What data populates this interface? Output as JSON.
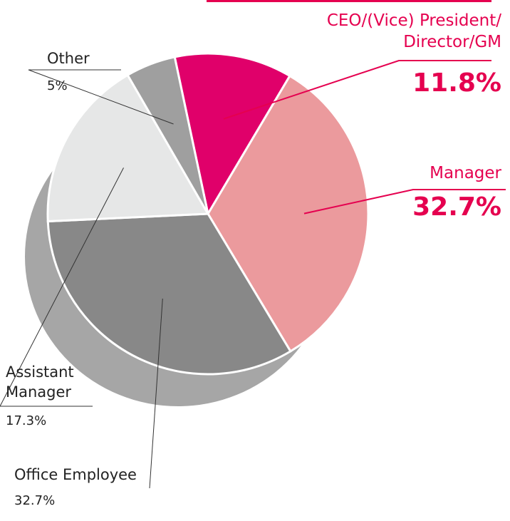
{
  "chart_data": {
    "type": "pie",
    "categories": [
      "CEO/(Vice) President/\nDirector/GM",
      "Manager",
      "Office Employee",
      "Assistant\nManager",
      "Other"
    ],
    "values": [
      11.8,
      32.7,
      32.7,
      17.3,
      5
    ],
    "value_labels": [
      "11.8%",
      "32.7%",
      "32.7%",
      "17.3%",
      "5%"
    ],
    "colors": [
      "#e0006a",
      "#eb9a9d",
      "#888888",
      "#e6e7e7",
      "#9f9f9f"
    ]
  }
}
